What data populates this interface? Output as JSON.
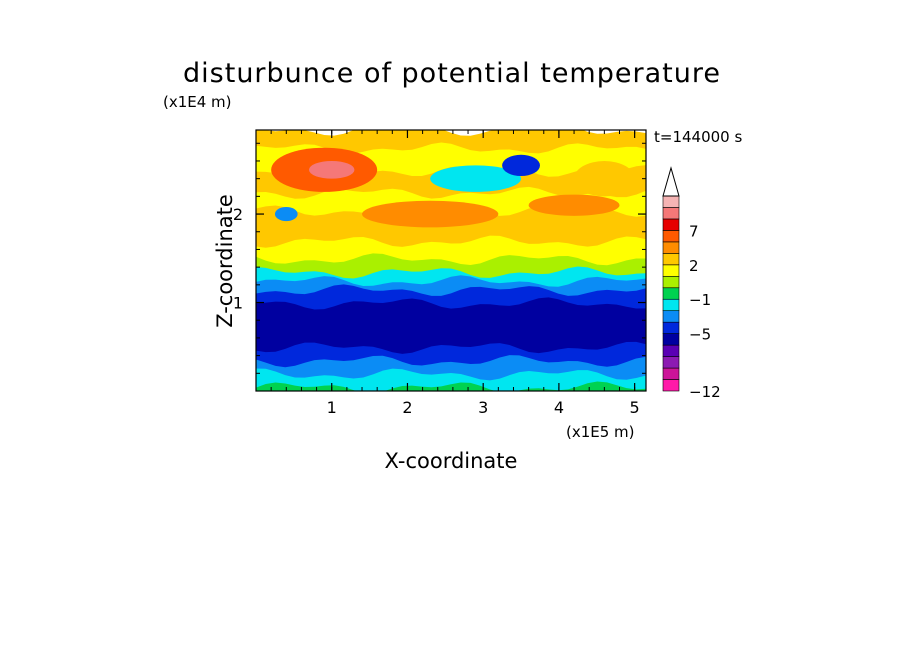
{
  "chart_data": {
    "type": "heatmap",
    "title": "disturbunce of potential temperature",
    "xlabel": "X-coordinate",
    "ylabel": "Z-coordinate",
    "x_multiplier": "(x1E5 m)",
    "y_multiplier": "(x1E4 m)",
    "time_label": "t=144000 s",
    "xlim": [
      0,
      5.15
    ],
    "ylim": [
      0,
      2.95
    ],
    "x_ticks": [
      1,
      2,
      3,
      4,
      5
    ],
    "y_ticks": [
      1,
      2
    ],
    "colorbar": {
      "levels": [
        "-12",
        "-5",
        "-1",
        "2",
        "7"
      ],
      "colors": [
        "#ff1aa8",
        "#cc1499",
        "#8c1ab2",
        "#5a00b4",
        "#0000a0",
        "#0028dc",
        "#0b8cf5",
        "#00e6f0",
        "#00d250",
        "#aaf000",
        "#ffff00",
        "#ffc800",
        "#ff8c00",
        "#ff5a00",
        "#e60000",
        "#f57878",
        "#f5b4b4"
      ],
      "extend": "max"
    },
    "bands": [
      {
        "z": 0.05,
        "v": -0.5
      },
      {
        "z": 0.2,
        "v": -1.5
      },
      {
        "z": 0.35,
        "v": -2.5
      },
      {
        "z": 0.5,
        "v": -3.5
      },
      {
        "z": 0.75,
        "v": -5
      },
      {
        "z": 1.0,
        "v": -5
      },
      {
        "z": 1.15,
        "v": -4
      },
      {
        "z": 1.25,
        "v": -3
      },
      {
        "z": 1.35,
        "v": -1.5
      },
      {
        "z": 1.5,
        "v": 0
      },
      {
        "z": 1.7,
        "v": 1
      },
      {
        "z": 1.85,
        "v": 1.5
      },
      {
        "z": 2.05,
        "v": 1.5
      },
      {
        "z": 2.25,
        "v": 1
      },
      {
        "z": 2.5,
        "v": 1.5
      },
      {
        "z": 2.75,
        "v": 1
      },
      {
        "z": 2.95,
        "v": 1.5
      }
    ],
    "features": [
      {
        "x": 0.9,
        "z": 2.5,
        "rx": 0.7,
        "rz": 0.25,
        "v": 4
      },
      {
        "x": 1.0,
        "z": 2.5,
        "rx": 0.3,
        "rz": 0.1,
        "v": 6
      },
      {
        "x": 2.9,
        "z": 2.4,
        "rx": 0.6,
        "rz": 0.15,
        "v": -2
      },
      {
        "x": 3.5,
        "z": 2.55,
        "rx": 0.25,
        "rz": 0.12,
        "v": -4
      },
      {
        "x": 0.4,
        "z": 2.0,
        "rx": 0.15,
        "rz": 0.08,
        "v": -3
      },
      {
        "x": 4.6,
        "z": 2.4,
        "rx": 0.4,
        "rz": 0.2,
        "v": 2
      },
      {
        "x": 2.3,
        "z": 2.0,
        "rx": 0.9,
        "rz": 0.15,
        "v": 2.5
      },
      {
        "x": 4.2,
        "z": 2.1,
        "rx": 0.6,
        "rz": 0.12,
        "v": 2.5
      }
    ]
  }
}
